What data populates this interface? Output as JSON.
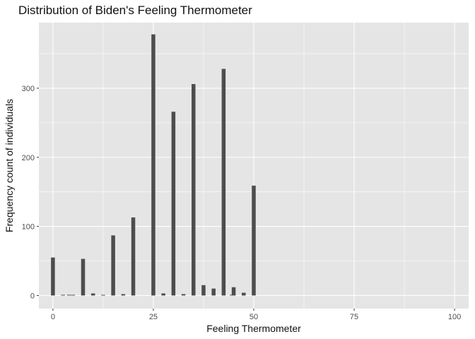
{
  "chart_data": {
    "type": "bar",
    "title": "Distribution of Biden's Feeling Thermometer",
    "xlabel": "Feeling Thermometer",
    "ylabel": "Frequency count of individuals",
    "xlim": [
      -3.5,
      103.5
    ],
    "ylim": [
      -19,
      395
    ],
    "x_ticks": [
      0,
      25,
      50,
      75,
      100
    ],
    "y_ticks": [
      0,
      100,
      200,
      300
    ],
    "grid": true,
    "bars": [
      {
        "x": 0,
        "y": 55
      },
      {
        "x": 2.5,
        "y": 1
      },
      {
        "x": 4,
        "y": 1
      },
      {
        "x": 5,
        "y": 1
      },
      {
        "x": 7.5,
        "y": 53
      },
      {
        "x": 10,
        "y": 3
      },
      {
        "x": 12.5,
        "y": 1
      },
      {
        "x": 15,
        "y": 87
      },
      {
        "x": 17.5,
        "y": 2
      },
      {
        "x": 20,
        "y": 113
      },
      {
        "x": 25,
        "y": 378
      },
      {
        "x": 27.5,
        "y": 3
      },
      {
        "x": 30,
        "y": 266
      },
      {
        "x": 32.5,
        "y": 2
      },
      {
        "x": 35,
        "y": 306
      },
      {
        "x": 37.5,
        "y": 15
      },
      {
        "x": 40,
        "y": 10
      },
      {
        "x": 42.5,
        "y": 328
      },
      {
        "x": 44.5,
        "y": 1
      },
      {
        "x": 45,
        "y": 12
      },
      {
        "x": 47.5,
        "y": 4
      },
      {
        "x": 50,
        "y": 159
      }
    ],
    "colors": {
      "panel": "#e5e5e5",
      "grid_major": "#ffffff",
      "bar": "#4d4d4d"
    }
  }
}
